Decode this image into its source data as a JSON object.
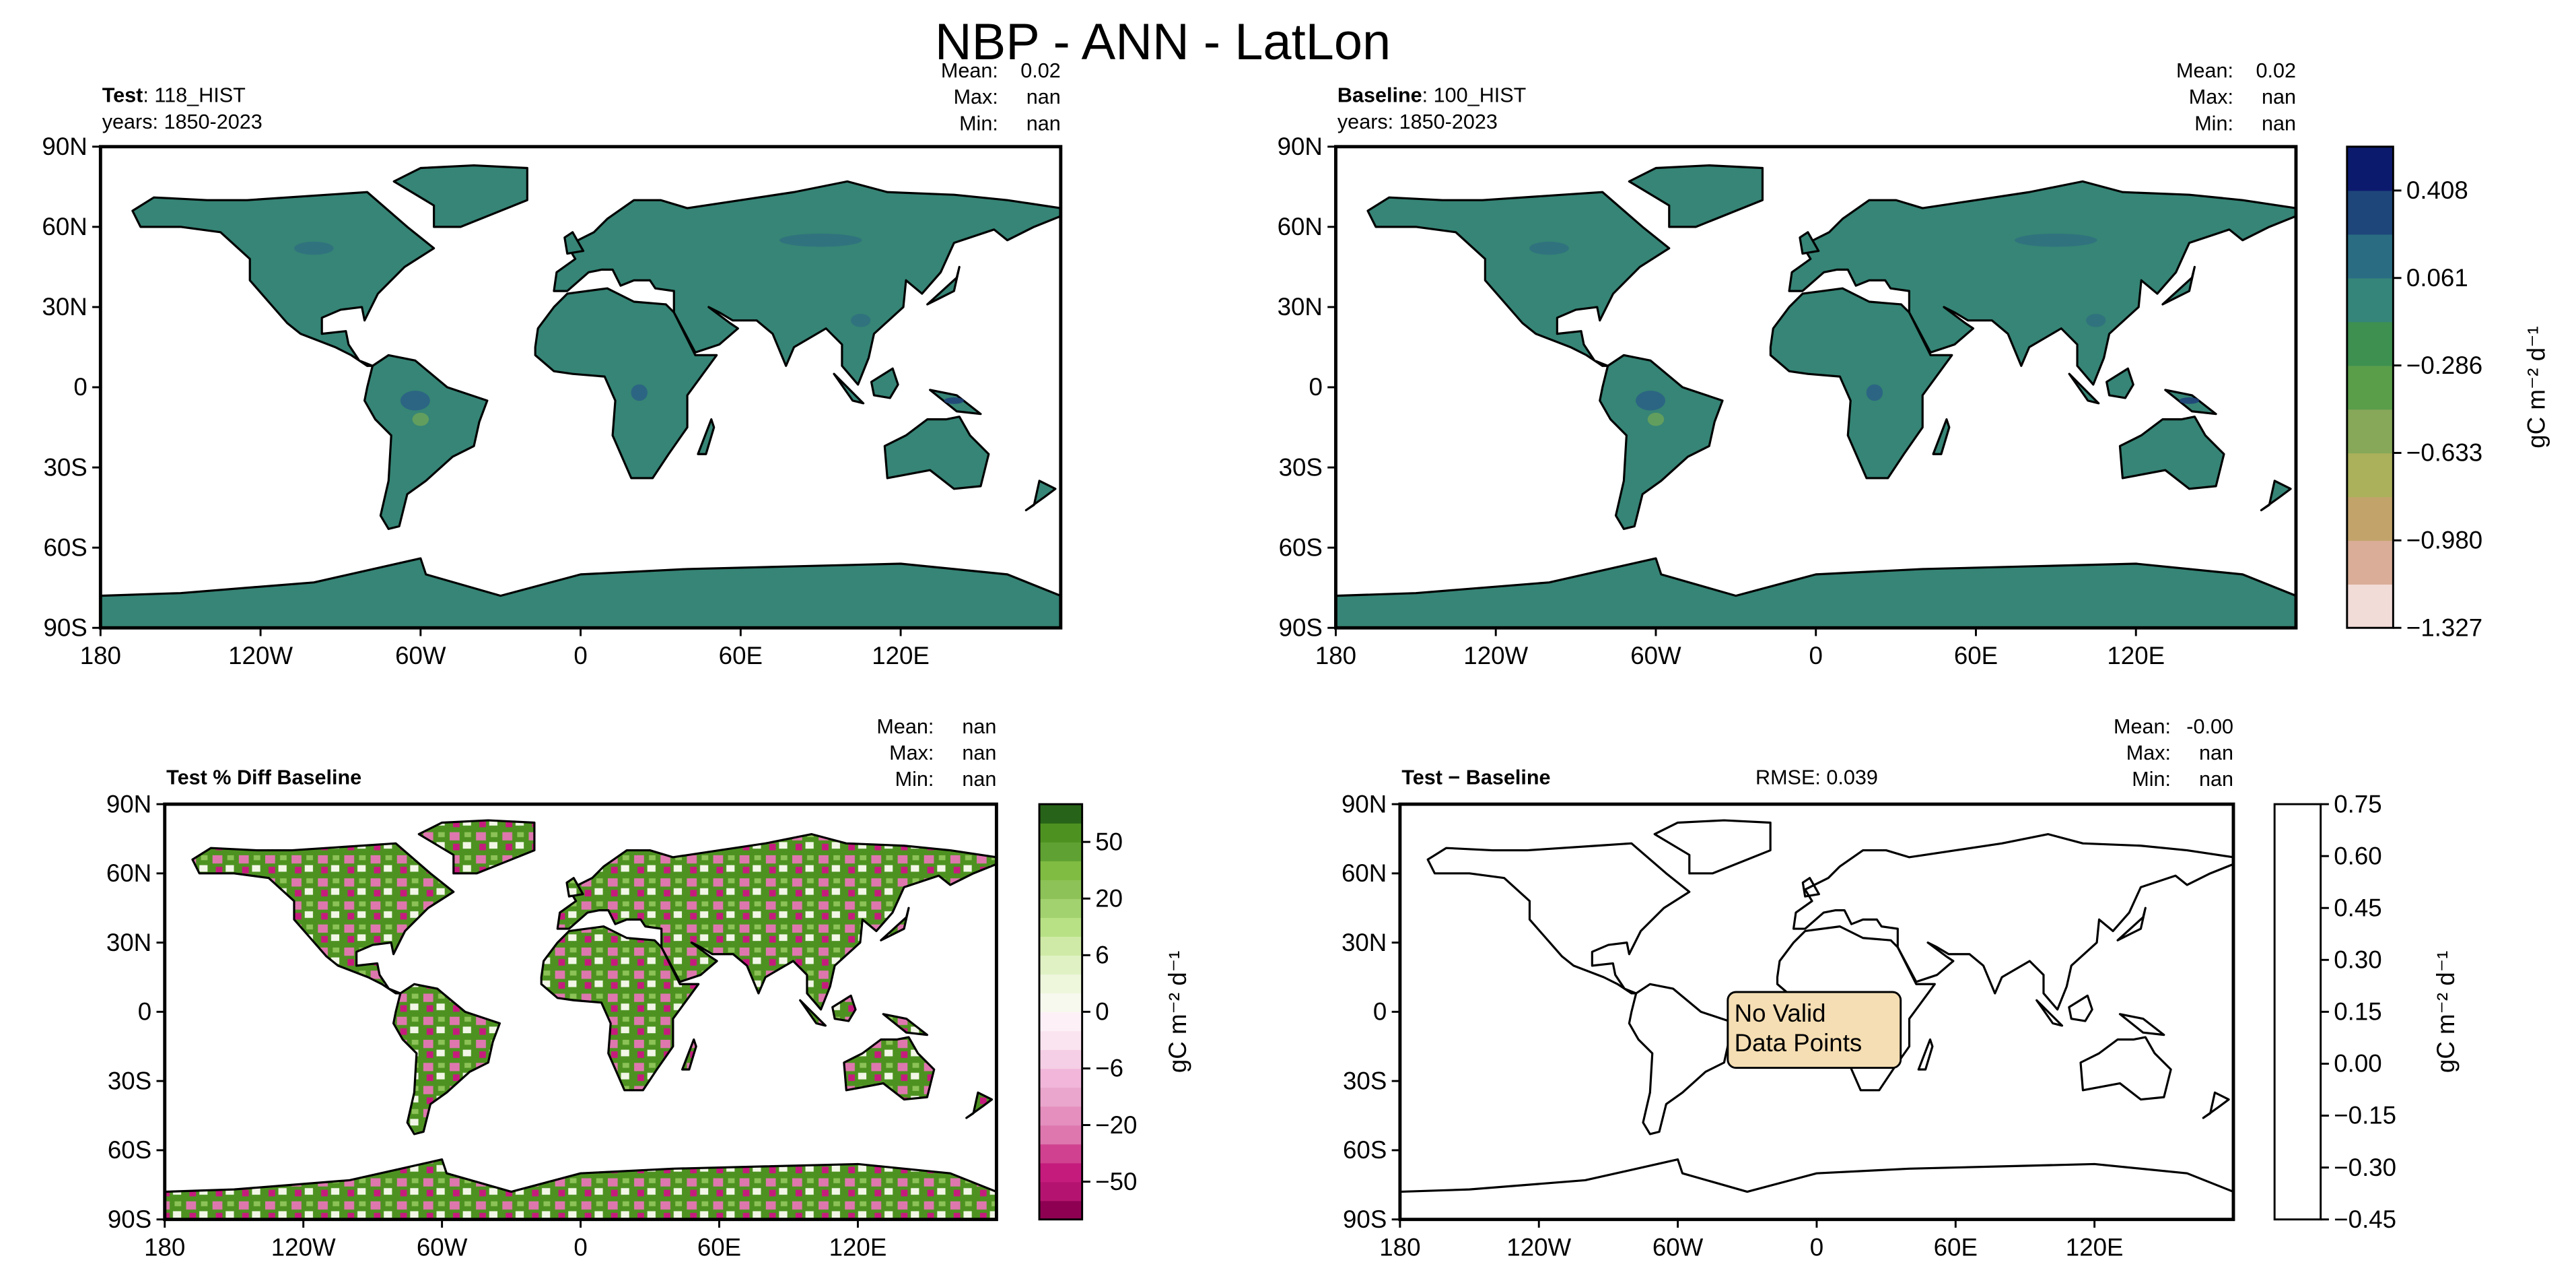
{
  "title": "NBP - ANN - LatLon",
  "lon_range": [
    -180,
    180
  ],
  "lat_range": [
    -90,
    90
  ],
  "lat_ticks": [
    {
      "value": 90,
      "label": "90N"
    },
    {
      "value": 60,
      "label": "60N"
    },
    {
      "value": 30,
      "label": "30N"
    },
    0,
    {
      "value": -30,
      "label": "30S"
    },
    {
      "value": -60,
      "label": "60S"
    },
    {
      "value": -90,
      "label": "90S"
    }
  ],
  "lon_ticks": [
    {
      "value": -180,
      "label": "180"
    },
    {
      "value": -120,
      "label": "120W"
    },
    {
      "value": -60,
      "label": "60W"
    },
    0,
    {
      "value": 60,
      "label": "60E"
    },
    {
      "value": 120,
      "label": "120E"
    }
  ],
  "panels": [
    {
      "name": "Test",
      "run": ": 118_HIST",
      "years": "years: 1850-2023",
      "land_color": "#368576",
      "stats": [
        [
          "Mean:",
          "0.02"
        ],
        [
          "Max:",
          "nan"
        ],
        [
          "Min:",
          "nan"
        ]
      ]
    },
    {
      "name": "Baseline",
      "run": ": 100_HIST",
      "years": "years: 1850-2023",
      "land_color": "#368576",
      "stats": [
        [
          "Mean:",
          "0.02"
        ],
        [
          "Max:",
          "nan"
        ],
        [
          "Min:",
          "nan"
        ]
      ]
    },
    {
      "name": "Test % Diff Baseline",
      "stats": [
        [
          "Mean:",
          "nan"
        ],
        [
          "Max:",
          "nan"
        ],
        [
          "Min:",
          "nan"
        ]
      ]
    },
    {
      "name": "Test − Baseline",
      "rmse": "RMSE: 0.039",
      "annotation": [
        "No Valid",
        "Data Points"
      ],
      "stats": [
        [
          "Mean:",
          "-0.00"
        ],
        [
          "Max:",
          "nan"
        ],
        [
          "Min:",
          "nan"
        ]
      ]
    }
  ],
  "colorbars": [
    {
      "label": "gC m⁻² d⁻¹",
      "lim": [
        -1.327,
        0.582
      ],
      "ticks": [
        {
          "value": -1.327,
          "label": "−1.327"
        },
        {
          "value": -0.98,
          "label": "−0.980"
        },
        {
          "value": -0.633,
          "label": "−0.633"
        },
        {
          "value": -0.286,
          "label": "−0.286"
        },
        0.061,
        0.408
      ],
      "colors": [
        "#f2dcd8",
        "#d9ad97",
        "#c2a46a",
        "#aab15a",
        "#86a858",
        "#5a9e4a",
        "#3d9050",
        "#36857a",
        "#2a6d83",
        "#1e467a",
        "#0c1a6e"
      ]
    },
    {
      "label": "gC m⁻² d⁻¹",
      "scale": "ordinal",
      "ticks": [
        {
          "value": -50,
          "label": "−50"
        },
        {
          "value": -20,
          "label": "−20"
        },
        {
          "value": -6,
          "label": "−6"
        },
        0,
        6,
        20,
        50
      ],
      "colors": [
        "#8e0152",
        "#b4146f",
        "#c51b7d",
        "#d0428f",
        "#de77ae",
        "#e48fbd",
        "#eaa6cc",
        "#f1b6da",
        "#f5cfe5",
        "#fae4f0",
        "#fdf1f7",
        "#f7f9ef",
        "#eef6dc",
        "#e0f2c4",
        "#cfeaa6",
        "#b8e186",
        "#a2d26f",
        "#8cc257",
        "#7fbc41",
        "#5fa132",
        "#4d9221",
        "#276419"
      ]
    },
    {
      "label": "gC m⁻² d⁻¹",
      "lim": [
        -0.45,
        0.75
      ],
      "ticks": [
        {
          "value": -0.45,
          "label": "−0.45"
        },
        {
          "value": -0.3,
          "label": "−0.30"
        },
        {
          "value": -0.15,
          "label": "−0.15"
        },
        {
          "value": 0,
          "label": "0.00"
        },
        0.15,
        {
          "value": 0.3,
          "label": "0.30"
        },
        0.45,
        {
          "value": 0.6,
          "label": "0.60"
        },
        0.75
      ],
      "colors": [
        "#ffffff"
      ]
    }
  ]
}
